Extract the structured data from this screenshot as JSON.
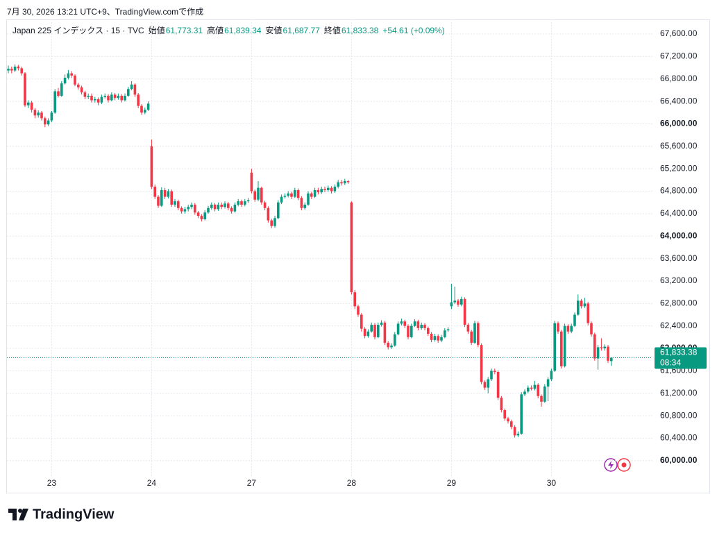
{
  "header": {
    "created": "7月 30, 2026 13:21 UTC+9、TradingView.comで作成",
    "symbol": "Japan 225 インデックス · 15 · TVC",
    "open_label": "始値",
    "open": "61,773.31",
    "high_label": "高値",
    "high": "61,839.34",
    "low_label": "安値",
    "low": "61,687.77",
    "close_label": "終値",
    "close": "61,833.38",
    "change": "+54.61 (+0.09%)"
  },
  "branding": "TradingView",
  "chart_data": {
    "type": "candlestick",
    "up_color": "#089981",
    "down_color": "#f23645",
    "grid": true,
    "last_price_label": "61,833.38",
    "countdown": "08:34",
    "categories": [
      null,
      null,
      null,
      null,
      null,
      null,
      null,
      null,
      null,
      null,
      null,
      null,
      null,
      "23",
      null,
      null,
      null,
      null,
      null,
      null,
      null,
      null,
      null,
      null,
      null,
      null,
      null,
      null,
      null,
      null,
      null,
      null,
      null,
      null,
      null,
      null,
      null,
      null,
      null,
      null,
      null,
      null,
      null,
      "24",
      null,
      null,
      null,
      null,
      null,
      null,
      null,
      null,
      null,
      null,
      null,
      null,
      null,
      null,
      null,
      null,
      null,
      null,
      null,
      null,
      null,
      null,
      null,
      null,
      null,
      null,
      null,
      null,
      null,
      "27",
      null,
      null,
      null,
      null,
      null,
      null,
      null,
      null,
      null,
      null,
      null,
      null,
      null,
      null,
      null,
      null,
      null,
      null,
      null,
      null,
      null,
      null,
      null,
      null,
      null,
      null,
      null,
      null,
      null,
      "28",
      null,
      null,
      null,
      null,
      null,
      null,
      null,
      null,
      null,
      null,
      null,
      null,
      null,
      null,
      null,
      null,
      null,
      null,
      null,
      null,
      null,
      null,
      null,
      null,
      null,
      null,
      null,
      null,
      null,
      "29",
      null,
      null,
      null,
      null,
      null,
      null,
      null,
      null,
      null,
      null,
      null,
      null,
      null,
      null,
      null,
      null,
      null,
      null,
      null,
      null,
      null,
      null,
      null,
      null,
      null,
      null,
      null,
      null,
      null,
      "30",
      null,
      null,
      null,
      null,
      null,
      null,
      null,
      null,
      null,
      null,
      null,
      null,
      null,
      null,
      null,
      null,
      null,
      null
    ],
    "open": [
      66950,
      66980,
      66950,
      67020,
      66990,
      66900,
      66330,
      66380,
      66250,
      66150,
      66200,
      66100,
      65990,
      66060,
      66200,
      66580,
      66500,
      66720,
      66820,
      66900,
      66860,
      66700,
      66650,
      66560,
      66480,
      66500,
      66420,
      66440,
      66380,
      66480,
      66500,
      66420,
      66520,
      66460,
      66500,
      66420,
      66500,
      66620,
      66700,
      66520,
      66320,
      66200,
      66250,
      65600,
      64880,
      64700,
      64540,
      64820,
      64700,
      64800,
      64560,
      64620,
      64500,
      64440,
      64480,
      64520,
      64560,
      64420,
      64360,
      64300,
      64420,
      64500,
      64560,
      64480,
      64560,
      64520,
      64580,
      64500,
      64440,
      64560,
      64620,
      64560,
      64620,
      65130,
      64800,
      64650,
      64860,
      64600,
      64500,
      64280,
      64180,
      64320,
      64600,
      64700,
      64720,
      64760,
      64700,
      64820,
      64680,
      64500,
      64560,
      64760,
      64700,
      64820,
      64780,
      64840,
      64820,
      64860,
      64800,
      64880,
      64960,
      64940,
      64980,
      64600,
      63000,
      62750,
      62600,
      62350,
      62220,
      62300,
      62420,
      62200,
      62420,
      62460,
      62100,
      62020,
      62050,
      62250,
      62440,
      62480,
      62400,
      62200,
      62400,
      62480,
      62360,
      62420,
      62360,
      62260,
      62150,
      62220,
      62140,
      62200,
      62320,
      62750,
      62820,
      62850,
      62780,
      62880,
      62420,
      62300,
      62100,
      62450,
      62060,
      61400,
      61300,
      61450,
      61600,
      61580,
      61120,
      60900,
      60750,
      60700,
      60600,
      60450,
      60480,
      61180,
      61230,
      61300,
      61280,
      61350,
      61150,
      61050,
      61320,
      61450,
      61600,
      62450,
      62300,
      61680,
      62400,
      62300,
      62400,
      62600,
      62850,
      62750,
      62800,
      62450,
      62250,
      61820,
      62020,
      62000,
      62030,
      61773.31
    ],
    "high": [
      67040,
      67020,
      67060,
      67050,
      67020,
      66920,
      66420,
      66410,
      66280,
      66240,
      66230,
      66130,
      66100,
      66230,
      66620,
      66640,
      66760,
      66880,
      66960,
      66940,
      66880,
      66730,
      66680,
      66590,
      66540,
      66540,
      66480,
      66470,
      66520,
      66540,
      66530,
      66560,
      66550,
      66540,
      66530,
      66540,
      66660,
      66760,
      66720,
      66550,
      66350,
      66290,
      66400,
      65720,
      64920,
      64730,
      64870,
      64860,
      64840,
      64830,
      64660,
      64650,
      64530,
      64520,
      64560,
      64600,
      64590,
      64450,
      64390,
      64460,
      64540,
      64600,
      64590,
      64600,
      64600,
      64620,
      64610,
      64530,
      64600,
      64660,
      64650,
      64660,
      64680,
      65200,
      64830,
      64980,
      64880,
      64630,
      64530,
      64310,
      64360,
      64640,
      64740,
      64760,
      64800,
      64790,
      64860,
      64850,
      64710,
      64600,
      64800,
      64790,
      64860,
      64860,
      64880,
      64880,
      64900,
      64890,
      64920,
      65000,
      65000,
      65020,
      65000,
      64620,
      63040,
      62780,
      62630,
      62380,
      62340,
      62460,
      62450,
      62460,
      62500,
      62490,
      62130,
      62090,
      62290,
      62480,
      62530,
      62510,
      62430,
      62440,
      62520,
      62510,
      62460,
      62450,
      62390,
      62290,
      62260,
      62250,
      62240,
      62360,
      62380,
      63150,
      63100,
      62880,
      62920,
      62910,
      62450,
      62330,
      62490,
      62480,
      62090,
      61430,
      61490,
      61640,
      61640,
      61610,
      61150,
      60930,
      60780,
      60730,
      60630,
      60520,
      61220,
      61270,
      61340,
      61340,
      61420,
      61380,
      61180,
      61360,
      61490,
      61640,
      62490,
      62480,
      62330,
      62440,
      62430,
      62440,
      62640,
      62960,
      62880,
      62900,
      62830,
      62480,
      62280,
      62060,
      62180,
      62070,
      62060,
      61839.34
    ],
    "low": [
      66900,
      66900,
      66920,
      66950,
      66860,
      66300,
      66280,
      66200,
      66100,
      66110,
      66060,
      65940,
      65960,
      66030,
      66180,
      66470,
      66480,
      66700,
      66790,
      66820,
      66670,
      66610,
      66520,
      66440,
      66440,
      66380,
      66380,
      66330,
      66350,
      66450,
      66380,
      66400,
      66420,
      66430,
      66380,
      66400,
      66480,
      66600,
      66480,
      66280,
      66160,
      66170,
      66230,
      64840,
      64660,
      64500,
      64520,
      64660,
      64670,
      64520,
      64520,
      64460,
      64400,
      64400,
      64440,
      64480,
      64380,
      64320,
      64260,
      64280,
      64400,
      64470,
      64440,
      64450,
      64480,
      64490,
      64460,
      64400,
      64420,
      64530,
      64520,
      64530,
      64590,
      64760,
      64610,
      64620,
      64560,
      64460,
      64240,
      64140,
      64150,
      64300,
      64570,
      64670,
      64690,
      64660,
      64680,
      64640,
      64460,
      64470,
      64540,
      64660,
      64680,
      64740,
      64750,
      64780,
      64790,
      64760,
      64770,
      64850,
      64900,
      64910,
      64930,
      62960,
      62700,
      62560,
      62300,
      62180,
      62190,
      62280,
      62160,
      62180,
      62390,
      62060,
      61980,
      61990,
      62030,
      62230,
      62410,
      62360,
      62160,
      62180,
      62380,
      62320,
      62330,
      62320,
      62220,
      62110,
      62120,
      62100,
      62110,
      62180,
      62290,
      62700,
      62790,
      62740,
      62750,
      62380,
      62260,
      62060,
      62080,
      62020,
      61360,
      61260,
      61200,
      61420,
      61540,
      61080,
      60860,
      60710,
      60660,
      60560,
      60410,
      60420,
      60460,
      61150,
      61200,
      61250,
      61250,
      61110,
      60960,
      61030,
      61060,
      61420,
      61580,
      62260,
      61640,
      61660,
      62260,
      62270,
      62380,
      62580,
      62710,
      62720,
      62410,
      62210,
      61780,
      61620,
      61960,
      61960,
      61740,
      61687.77
    ],
    "close": [
      66980,
      66950,
      67020,
      66990,
      66900,
      66330,
      66380,
      66250,
      66150,
      66200,
      66100,
      65990,
      66060,
      66200,
      66580,
      66500,
      66720,
      66820,
      66900,
      66860,
      66700,
      66650,
      66560,
      66480,
      66500,
      66420,
      66440,
      66380,
      66480,
      66500,
      66420,
      66520,
      66460,
      66500,
      66420,
      66500,
      66620,
      66700,
      66520,
      66320,
      66200,
      66250,
      66360,
      64880,
      64700,
      64540,
      64820,
      64700,
      64800,
      64560,
      64620,
      64500,
      64440,
      64480,
      64520,
      64560,
      64420,
      64360,
      64300,
      64420,
      64500,
      64560,
      64480,
      64560,
      64520,
      64580,
      64500,
      64440,
      64560,
      64620,
      64560,
      64620,
      64640,
      64800,
      64650,
      64860,
      64600,
      64500,
      64280,
      64180,
      64320,
      64600,
      64700,
      64720,
      64760,
      64700,
      64820,
      64680,
      64500,
      64560,
      64760,
      64700,
      64820,
      64780,
      64840,
      64820,
      64860,
      64800,
      64880,
      64960,
      64940,
      64980,
      64960,
      63000,
      62750,
      62600,
      62350,
      62220,
      62300,
      62420,
      62200,
      62420,
      62460,
      62100,
      62020,
      62050,
      62250,
      62440,
      62480,
      62400,
      62200,
      62400,
      62480,
      62360,
      62420,
      62360,
      62260,
      62150,
      62220,
      62140,
      62200,
      62320,
      62340,
      62820,
      62850,
      62780,
      62880,
      62420,
      62300,
      62100,
      62450,
      62060,
      61400,
      61300,
      61450,
      61600,
      61580,
      61120,
      60900,
      60750,
      60700,
      60600,
      60450,
      60480,
      61180,
      61230,
      61300,
      61280,
      61350,
      61150,
      61050,
      61320,
      61450,
      61600,
      62450,
      62300,
      61680,
      62400,
      62300,
      62400,
      62600,
      62850,
      62750,
      62800,
      62450,
      62250,
      61820,
      62020,
      62000,
      62030,
      61780,
      61833.38
    ],
    "ylim": [
      59800,
      67860
    ],
    "yticks": [
      {
        "value": 60000,
        "label": "60,000.00"
      },
      {
        "value": 60400,
        "label": "60,400.00"
      },
      {
        "value": 60800,
        "label": "60,800.00"
      },
      {
        "value": 61200,
        "label": "61,200.00"
      },
      {
        "value": 61600,
        "label": "61,600.00"
      },
      {
        "value": 62000,
        "label": "62,000.00"
      },
      {
        "value": 62400,
        "label": "62,400.00"
      },
      {
        "value": 62800,
        "label": "62,800.00"
      },
      {
        "value": 63200,
        "label": "63,200.00"
      },
      {
        "value": 63600,
        "label": "63,600.00"
      },
      {
        "value": 64000,
        "label": "64,000.00"
      },
      {
        "value": 64400,
        "label": "64,400.00"
      },
      {
        "value": 64800,
        "label": "64,800.00"
      },
      {
        "value": 65200,
        "label": "65,200.00"
      },
      {
        "value": 65600,
        "label": "65,600.00"
      },
      {
        "value": 66000,
        "label": "66,000.00"
      },
      {
        "value": 66400,
        "label": "66,400.00"
      },
      {
        "value": 66800,
        "label": "66,800.00"
      },
      {
        "value": 67200,
        "label": "67,200.00"
      },
      {
        "value": 67600,
        "label": "67,600.00"
      }
    ]
  }
}
